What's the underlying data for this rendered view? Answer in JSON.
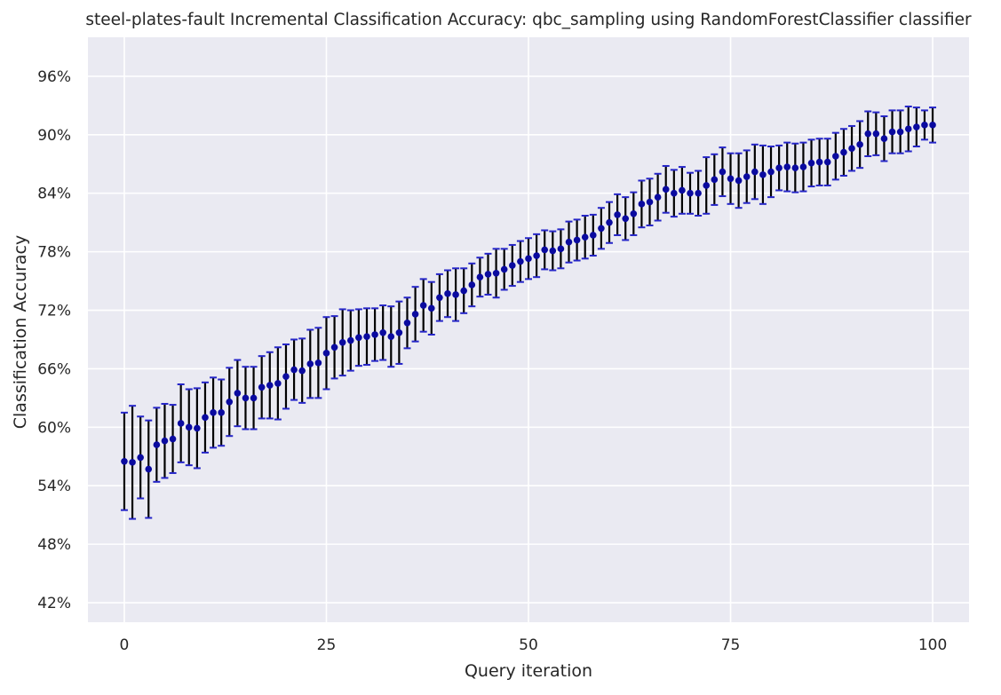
{
  "chart_data": {
    "type": "scatter",
    "title": "steel-plates-fault Incremental Classification Accuracy: qbc_sampling using RandomForestClassifier classifier",
    "xlabel": "Query iteration",
    "ylabel": "Classification Accuracy",
    "xlim": [
      -4.5,
      104.5
    ],
    "ylim": [
      0.4,
      1.0
    ],
    "x_ticks": [
      0,
      25,
      50,
      75,
      100
    ],
    "x_tick_labels": [
      "0",
      "25",
      "50",
      "75",
      "100"
    ],
    "y_ticks": [
      0.42,
      0.48,
      0.54,
      0.6,
      0.66,
      0.72,
      0.78,
      0.84,
      0.9,
      0.96
    ],
    "y_tick_labels": [
      "42%",
      "48%",
      "54%",
      "60%",
      "66%",
      "72%",
      "78%",
      "84%",
      "90%",
      "96%"
    ],
    "grid": true,
    "background": "#eaeaf2",
    "grid_color": "#ffffff",
    "marker_color": "#0a0aa0",
    "errorbar_color": "#000000",
    "cap_color": "#2525c8",
    "series": [
      {
        "x": [
          0,
          1,
          2,
          3,
          4,
          5,
          6,
          7,
          8,
          9,
          10,
          11,
          12,
          13,
          14,
          15,
          16,
          17,
          18,
          19,
          20,
          21,
          22,
          23,
          24,
          25,
          26,
          27,
          28,
          29,
          30,
          31,
          32,
          33,
          34,
          35,
          36,
          37,
          38,
          39,
          40,
          41,
          42,
          43,
          44,
          45,
          46,
          47,
          48,
          49,
          50,
          51,
          52,
          53,
          54,
          55,
          56,
          57,
          58,
          59,
          60,
          61,
          62,
          63,
          64,
          65,
          66,
          67,
          68,
          69,
          70,
          71,
          72,
          73,
          74,
          75,
          76,
          77,
          78,
          79,
          80,
          81,
          82,
          83,
          84,
          85,
          86,
          87,
          88,
          89,
          90,
          91,
          92,
          93,
          94,
          95,
          96,
          97,
          98,
          99,
          100
        ],
        "y": [
          0.565,
          0.564,
          0.569,
          0.557,
          0.582,
          0.586,
          0.588,
          0.604,
          0.6,
          0.599,
          0.61,
          0.615,
          0.615,
          0.626,
          0.635,
          0.63,
          0.63,
          0.641,
          0.643,
          0.645,
          0.652,
          0.659,
          0.658,
          0.665,
          0.666,
          0.676,
          0.682,
          0.687,
          0.689,
          0.692,
          0.693,
          0.695,
          0.697,
          0.693,
          0.697,
          0.707,
          0.716,
          0.725,
          0.722,
          0.733,
          0.737,
          0.736,
          0.74,
          0.746,
          0.754,
          0.757,
          0.758,
          0.762,
          0.766,
          0.77,
          0.773,
          0.776,
          0.782,
          0.781,
          0.783,
          0.79,
          0.792,
          0.795,
          0.797,
          0.804,
          0.81,
          0.818,
          0.814,
          0.819,
          0.829,
          0.831,
          0.836,
          0.844,
          0.84,
          0.843,
          0.84,
          0.84,
          0.848,
          0.854,
          0.862,
          0.855,
          0.853,
          0.857,
          0.862,
          0.859,
          0.862,
          0.866,
          0.867,
          0.866,
          0.867,
          0.871,
          0.872,
          0.872,
          0.878,
          0.882,
          0.886,
          0.89,
          0.901,
          0.901,
          0.896,
          0.903,
          0.903,
          0.906,
          0.908,
          0.91,
          0.91
        ],
        "err": [
          0.05,
          0.058,
          0.042,
          0.05,
          0.038,
          0.038,
          0.035,
          0.04,
          0.039,
          0.041,
          0.036,
          0.036,
          0.034,
          0.035,
          0.034,
          0.032,
          0.032,
          0.032,
          0.034,
          0.037,
          0.033,
          0.031,
          0.033,
          0.035,
          0.036,
          0.037,
          0.032,
          0.034,
          0.031,
          0.029,
          0.029,
          0.027,
          0.028,
          0.031,
          0.032,
          0.026,
          0.028,
          0.027,
          0.027,
          0.024,
          0.024,
          0.027,
          0.023,
          0.022,
          0.02,
          0.021,
          0.025,
          0.021,
          0.021,
          0.021,
          0.021,
          0.022,
          0.02,
          0.02,
          0.02,
          0.021,
          0.021,
          0.022,
          0.021,
          0.021,
          0.021,
          0.021,
          0.022,
          0.022,
          0.024,
          0.024,
          0.024,
          0.024,
          0.024,
          0.024,
          0.021,
          0.023,
          0.029,
          0.026,
          0.025,
          0.026,
          0.028,
          0.027,
          0.028,
          0.03,
          0.026,
          0.023,
          0.025,
          0.025,
          0.025,
          0.024,
          0.024,
          0.024,
          0.024,
          0.024,
          0.023,
          0.024,
          0.023,
          0.022,
          0.023,
          0.022,
          0.022,
          0.023,
          0.02,
          0.015,
          0.018
        ]
      }
    ]
  }
}
